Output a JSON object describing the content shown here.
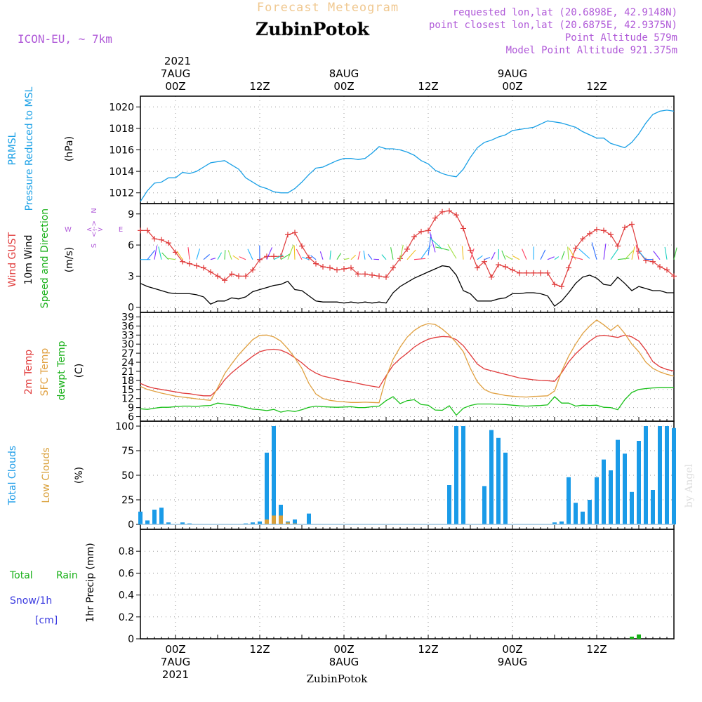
{
  "header": {
    "title": "Forecast Meteogram",
    "model": "ICON-EU, ~ 7km",
    "location": "ZubinPotok",
    "requested": "requested lon,lat (20.6898E, 42.9148N)",
    "closest": "point closest lon,lat (20.6875E, 42.9375N)",
    "altitude": "Point Altitude 579m",
    "model_altitude": "Model Point Altitude 921.375m",
    "footer_location": "ZubinPotok",
    "watermark": "by Angel"
  },
  "time_axis": {
    "year": "2021",
    "top_days": [
      {
        "hour": 0,
        "label": "7AUG"
      },
      {
        "hour": 24,
        "label": "8AUG"
      },
      {
        "hour": 48,
        "label": "9AUG"
      }
    ],
    "tick_labels": [
      {
        "hour": 0,
        "label": "00Z"
      },
      {
        "hour": 12,
        "label": "12Z"
      },
      {
        "hour": 24,
        "label": "00Z"
      },
      {
        "hour": 36,
        "label": "12Z"
      },
      {
        "hour": 48,
        "label": "00Z"
      },
      {
        "hour": 60,
        "label": "12Z"
      }
    ],
    "range_hours": [
      -5,
      71
    ]
  },
  "panel_labels": {
    "pressure": [
      "PRMSL",
      "Pressure Reduced to MSL",
      "(hPa)"
    ],
    "wind": [
      "Wind GUST",
      "10m Wind",
      "Speed and Direction",
      "(m/s)"
    ],
    "compass": [
      "N",
      "W",
      "E",
      "S",
      "<-->"
    ],
    "temp": [
      "2m Temp",
      "SFC Temp",
      "dewpt Temp",
      "(C)"
    ],
    "clouds": [
      "Total Clouds",
      "Low Clouds",
      "(%)"
    ],
    "precip": [
      "Total",
      "Rain",
      "Snow/1h",
      "[cm]",
      "1hr Precip (mm)"
    ]
  },
  "colors": {
    "pressure": "#1aa0e6",
    "gust": "#e03a3a",
    "wind": "#000000",
    "temp2m": "#e03a3a",
    "sfc": "#e0a040",
    "dewpt": "#18c018",
    "clouds_total": "#1a9be8",
    "clouds_low": "#d9a03a",
    "rain": "#18b018",
    "snow": "#3a3ae0",
    "header_purple": "#b05ad8",
    "title_orange": "#f0c890"
  },
  "chart_data": [
    {
      "type": "line",
      "name": "pressure",
      "ylim": [
        1011,
        1021
      ],
      "yticks": [
        1012,
        1014,
        1016,
        1018,
        1020
      ],
      "x": [
        -5,
        -4,
        -3,
        -2,
        -1,
        0,
        1,
        2,
        3,
        4,
        5,
        6,
        7,
        8,
        9,
        10,
        11,
        12,
        13,
        14,
        15,
        16,
        17,
        18,
        19,
        20,
        21,
        22,
        23,
        24,
        25,
        26,
        27,
        28,
        29,
        30,
        31,
        32,
        33,
        34,
        35,
        36,
        37,
        38,
        39,
        40,
        41,
        42,
        43,
        44,
        45,
        46,
        47,
        48,
        49,
        50,
        51,
        52,
        53,
        54,
        55,
        56,
        57,
        58,
        59,
        60,
        61,
        62,
        63,
        64,
        65,
        66,
        67,
        68,
        69,
        70,
        71
      ],
      "values": [
        1011.2,
        1012.2,
        1012.9,
        1013.0,
        1013.4,
        1013.4,
        1013.9,
        1013.8,
        1014.0,
        1014.4,
        1014.8,
        1014.9,
        1015.0,
        1014.6,
        1014.2,
        1013.4,
        1013.0,
        1012.6,
        1012.4,
        1012.1,
        1012.0,
        1012.0,
        1012.4,
        1013.0,
        1013.7,
        1014.3,
        1014.4,
        1014.7,
        1015.0,
        1015.2,
        1015.2,
        1015.1,
        1015.2,
        1015.7,
        1016.3,
        1016.1,
        1016.1,
        1016.0,
        1015.8,
        1015.5,
        1015.0,
        1014.7,
        1014.1,
        1013.8,
        1013.6,
        1013.5,
        1014.2,
        1015.3,
        1016.2,
        1016.7,
        1016.9,
        1017.2,
        1017.4,
        1017.8,
        1017.9,
        1018.0,
        1018.1,
        1018.4,
        1018.7,
        1018.6,
        1018.5,
        1018.3,
        1018.1,
        1017.7,
        1017.4,
        1017.1,
        1017.1,
        1016.6,
        1016.4,
        1016.2,
        1016.7,
        1017.5,
        1018.5,
        1019.3,
        1019.6,
        1019.7,
        1019.6
      ]
    },
    {
      "type": "line",
      "name": "wind",
      "ylim": [
        -0.5,
        10
      ],
      "yticks": [
        0,
        3,
        6,
        9
      ],
      "x": [
        -5,
        -4,
        -3,
        -2,
        -1,
        0,
        1,
        2,
        3,
        4,
        5,
        6,
        7,
        8,
        9,
        10,
        11,
        12,
        13,
        14,
        15,
        16,
        17,
        18,
        19,
        20,
        21,
        22,
        23,
        24,
        25,
        26,
        27,
        28,
        29,
        30,
        31,
        32,
        33,
        34,
        35,
        36,
        37,
        38,
        39,
        40,
        41,
        42,
        43,
        44,
        45,
        46,
        47,
        48,
        49,
        50,
        51,
        52,
        53,
        54,
        55,
        56,
        57,
        58,
        59,
        60,
        61,
        62,
        63,
        64,
        65,
        66,
        67,
        68,
        69,
        70,
        71
      ],
      "series": [
        {
          "name": "Wind GUST",
          "values": [
            7.4,
            7.4,
            6.6,
            6.5,
            6.2,
            5.3,
            4.4,
            4.2,
            4.0,
            3.8,
            3.4,
            3.0,
            2.6,
            3.2,
            3.0,
            3.0,
            3.6,
            4.6,
            4.9,
            4.9,
            4.9,
            7.0,
            7.2,
            5.9,
            4.8,
            4.2,
            3.9,
            3.8,
            3.6,
            3.7,
            3.8,
            3.2,
            3.2,
            3.1,
            3.0,
            2.9,
            3.8,
            4.7,
            5.6,
            6.8,
            7.3,
            7.4,
            8.6,
            9.2,
            9.3,
            8.9,
            7.6,
            5.5,
            3.8,
            4.4,
            2.9,
            4.1,
            3.9,
            3.6,
            3.3,
            3.3,
            3.3,
            3.3,
            3.3,
            2.2,
            2.0,
            3.8,
            5.7,
            6.6,
            7.1,
            7.5,
            7.4,
            7.0,
            5.9,
            7.7,
            8.0,
            5.4,
            4.5,
            4.4,
            3.9,
            3.6,
            3.0
          ]
        },
        {
          "name": "10m Wind",
          "values": [
            2.3,
            2.0,
            1.8,
            1.6,
            1.4,
            1.3,
            1.3,
            1.3,
            1.2,
            1.0,
            0.3,
            0.6,
            0.6,
            0.9,
            0.8,
            1.0,
            1.5,
            1.7,
            1.9,
            2.1,
            2.2,
            2.5,
            1.7,
            1.6,
            1.1,
            0.6,
            0.5,
            0.5,
            0.5,
            0.4,
            0.5,
            0.4,
            0.5,
            0.4,
            0.5,
            0.4,
            1.4,
            2.0,
            2.4,
            2.8,
            3.1,
            3.4,
            3.7,
            4.0,
            3.9,
            3.1,
            1.6,
            1.3,
            0.6,
            0.6,
            0.6,
            0.8,
            0.9,
            1.3,
            1.3,
            1.4,
            1.4,
            1.3,
            1.1,
            0.1,
            0.6,
            1.4,
            2.3,
            2.9,
            3.1,
            2.8,
            2.2,
            2.1,
            2.9,
            2.3,
            1.6,
            2.0,
            1.8,
            1.6,
            1.6,
            1.4,
            1.4
          ]
        }
      ]
    },
    {
      "type": "line",
      "name": "temperature",
      "ylim": [
        4.5,
        40.5
      ],
      "yticks": [
        6,
        9,
        12,
        15,
        18,
        21,
        24,
        27,
        30,
        33,
        36,
        39
      ],
      "x": [
        -5,
        -4,
        -3,
        -2,
        -1,
        0,
        1,
        2,
        3,
        4,
        5,
        6,
        7,
        8,
        9,
        10,
        11,
        12,
        13,
        14,
        15,
        16,
        17,
        18,
        19,
        20,
        21,
        22,
        23,
        24,
        25,
        26,
        27,
        28,
        29,
        30,
        31,
        32,
        33,
        34,
        35,
        36,
        37,
        38,
        39,
        40,
        41,
        42,
        43,
        44,
        45,
        46,
        47,
        48,
        49,
        50,
        51,
        52,
        53,
        54,
        55,
        56,
        57,
        58,
        59,
        60,
        61,
        62,
        63,
        64,
        65,
        66,
        67,
        68,
        69,
        70,
        71
      ],
      "series": [
        {
          "name": "2m Temp",
          "values": [
            17.0,
            16.0,
            15.4,
            15.0,
            14.6,
            14.2,
            13.8,
            13.6,
            13.2,
            12.9,
            12.9,
            15.0,
            18.2,
            20.5,
            22.4,
            24.2,
            26.0,
            27.5,
            28.1,
            28.3,
            28.0,
            27.0,
            25.5,
            23.8,
            21.8,
            20.4,
            19.4,
            18.9,
            18.4,
            17.8,
            17.5,
            17.0,
            16.5,
            16.1,
            15.7,
            19.5,
            23.0,
            25.2,
            27.0,
            29.0,
            30.5,
            31.6,
            32.2,
            32.5,
            32.4,
            31.5,
            29.5,
            26.5,
            23.4,
            21.8,
            21.2,
            20.6,
            20.0,
            19.4,
            18.8,
            18.5,
            18.2,
            18.0,
            17.9,
            17.7,
            20.5,
            24.1,
            26.8,
            29.0,
            31.0,
            32.6,
            32.9,
            32.6,
            32.2,
            33.0,
            32.4,
            31.0,
            28.0,
            24.2,
            22.5,
            21.6,
            21.1
          ]
        },
        {
          "name": "SFC Temp",
          "values": [
            16.0,
            15.0,
            14.4,
            13.8,
            13.3,
            12.8,
            12.5,
            12.2,
            11.9,
            11.6,
            11.4,
            15.5,
            20.2,
            23.5,
            26.5,
            29.0,
            31.5,
            32.9,
            33.0,
            32.4,
            31.0,
            28.5,
            25.5,
            22.0,
            17.0,
            13.5,
            12.0,
            11.4,
            11.1,
            10.9,
            10.7,
            10.7,
            10.8,
            10.7,
            10.6,
            19.0,
            25.0,
            29.0,
            32.3,
            34.5,
            36.0,
            36.8,
            36.5,
            35.0,
            33.0,
            30.5,
            27.5,
            22.0,
            17.5,
            15.0,
            13.9,
            13.5,
            13.0,
            12.8,
            12.6,
            12.5,
            12.7,
            12.8,
            12.9,
            14.5,
            21.0,
            26.0,
            30.0,
            33.5,
            36.0,
            38.0,
            36.4,
            34.5,
            36.3,
            33.5,
            30.0,
            27.5,
            24.0,
            22.0,
            20.8,
            20.0,
            19.4
          ]
        },
        {
          "name": "dewpt Temp",
          "values": [
            8.6,
            8.4,
            8.8,
            9.1,
            9.1,
            9.3,
            9.5,
            9.5,
            9.4,
            9.6,
            9.7,
            10.5,
            10.2,
            9.9,
            9.6,
            9.0,
            8.5,
            8.3,
            8.0,
            8.4,
            7.5,
            8.0,
            7.7,
            8.3,
            9.1,
            9.5,
            9.3,
            9.2,
            9.1,
            9.2,
            9.3,
            9.0,
            9.0,
            9.3,
            9.5,
            11.3,
            12.6,
            10.3,
            11.3,
            11.6,
            10.0,
            9.8,
            8.2,
            8.1,
            9.6,
            6.5,
            8.8,
            9.7,
            10.2,
            10.2,
            10.2,
            10.1,
            10.0,
            9.8,
            9.6,
            9.5,
            9.6,
            9.7,
            9.9,
            12.6,
            10.5,
            10.5,
            9.5,
            9.8,
            9.7,
            9.8,
            9.1,
            9.0,
            8.3,
            11.6,
            14.0,
            15.0,
            15.3,
            15.5,
            15.6,
            15.6,
            15.6
          ]
        }
      ]
    },
    {
      "type": "bar",
      "name": "clouds",
      "ylim": [
        -5,
        105
      ],
      "yticks": [
        0,
        25,
        50,
        75,
        100
      ],
      "x": [
        -5,
        -4,
        -3,
        -2,
        -1,
        0,
        1,
        2,
        3,
        4,
        5,
        6,
        7,
        8,
        9,
        10,
        11,
        12,
        13,
        14,
        15,
        16,
        17,
        18,
        19,
        20,
        21,
        22,
        23,
        24,
        25,
        26,
        27,
        28,
        29,
        30,
        31,
        32,
        33,
        34,
        35,
        36,
        37,
        38,
        39,
        40,
        41,
        42,
        43,
        44,
        45,
        46,
        47,
        48,
        49,
        50,
        51,
        52,
        53,
        54,
        55,
        56,
        57,
        58,
        59,
        60,
        61,
        62,
        63,
        64,
        65,
        66,
        67,
        68,
        69,
        70,
        71
      ],
      "series": [
        {
          "name": "Total Clouds",
          "values": [
            13,
            4,
            15,
            17,
            2,
            0,
            2,
            1,
            0,
            0,
            0,
            0,
            0,
            0,
            0,
            1,
            2,
            3,
            73,
            100,
            20,
            3,
            5,
            0,
            11,
            0,
            0,
            0,
            0,
            0,
            0,
            0,
            0,
            0,
            0,
            0,
            0,
            0,
            0,
            0,
            0,
            0,
            0,
            0,
            40,
            100,
            100,
            0,
            0,
            39,
            96,
            88,
            73,
            0,
            0,
            0,
            0,
            0,
            0,
            2,
            3,
            48,
            22,
            13,
            25,
            48,
            66,
            55,
            86,
            72,
            33,
            85,
            100,
            35,
            100,
            100,
            98
          ]
        },
        {
          "name": "Low Clouds",
          "values": [
            0,
            0,
            0,
            0,
            0,
            0,
            0,
            0,
            0,
            0,
            0,
            0,
            0,
            0,
            0,
            0,
            0,
            0,
            5,
            9,
            9,
            2,
            1,
            0,
            0,
            0,
            0,
            0,
            0,
            0,
            0,
            0,
            0,
            0,
            0,
            0,
            0,
            0,
            0,
            0,
            0,
            0,
            0,
            0,
            0,
            0,
            0,
            0,
            0,
            0,
            0,
            0,
            0,
            0,
            0,
            0,
            0,
            0,
            0,
            0,
            0,
            0,
            0,
            0,
            0,
            0,
            0,
            0,
            0,
            0,
            0,
            0,
            0,
            0,
            0,
            0,
            0
          ]
        }
      ]
    },
    {
      "type": "bar",
      "name": "precipitation",
      "ylim": [
        0,
        1.0
      ],
      "yticks": [
        0,
        0.2,
        0.4,
        0.6,
        0.8
      ],
      "x": [
        65,
        66
      ],
      "series": [
        {
          "name": "Rain",
          "values": [
            0.02,
            0.04
          ]
        }
      ]
    }
  ]
}
